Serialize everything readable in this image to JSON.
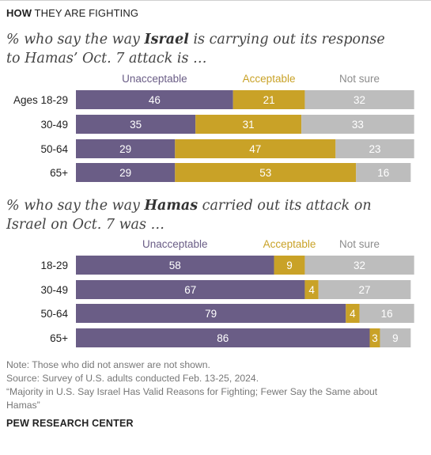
{
  "header": {
    "tag_bold": "HOW",
    "tag_rest": " THEY ARE FIGHTING"
  },
  "footer": {
    "note": "Note: Those who did not answer are not shown.",
    "source": "Source: Survey of U.S. adults conducted Feb. 13-25, 2024.",
    "report_line1": "“Majority in U.S. Say Israel Has Valid Reasons for Fighting; Fewer Say the Same about",
    "report_line2": "Hamas”",
    "credit": "PEW RESEARCH CENTER"
  },
  "colors": {
    "unacceptable": "#6a5d86",
    "acceptable": "#c9a227",
    "not_sure": "#bdbdbd"
  },
  "chart_data": [
    {
      "type": "bar",
      "orientation": "horizontal",
      "stacked": true,
      "title_parts": [
        "% who say the way ",
        "Israel",
        " is carrying out its response",
        "to Hamas’ Oct. 7 attack is …"
      ],
      "categories": [
        "Ages 18-29",
        "30-49",
        "50-64",
        "65+"
      ],
      "series": [
        {
          "name": "Unacceptable",
          "values": [
            46,
            35,
            29,
            29
          ]
        },
        {
          "name": "Acceptable",
          "values": [
            21,
            31,
            47,
            53
          ]
        },
        {
          "name": "Not sure",
          "values": [
            32,
            33,
            23,
            16
          ]
        }
      ],
      "legend": "top"
    },
    {
      "type": "bar",
      "orientation": "horizontal",
      "stacked": true,
      "title_parts": [
        "% who say the way ",
        "Hamas",
        " carried out its attack on",
        "Israel on Oct. 7 was …"
      ],
      "categories": [
        "18-29",
        "30-49",
        "50-64",
        "65+"
      ],
      "series": [
        {
          "name": "Unacceptable",
          "values": [
            58,
            67,
            79,
            86
          ]
        },
        {
          "name": "Acceptable",
          "values": [
            9,
            4,
            4,
            3
          ]
        },
        {
          "name": "Not sure",
          "values": [
            32,
            27,
            16,
            9
          ]
        }
      ],
      "legend": "top"
    }
  ]
}
